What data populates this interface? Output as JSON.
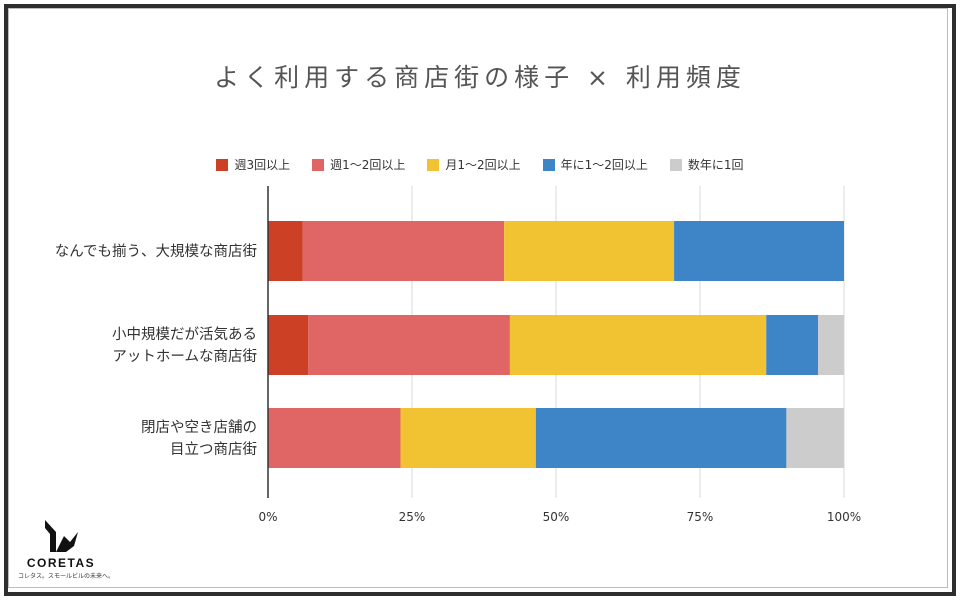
{
  "chart_data": {
    "type": "bar",
    "orientation": "horizontal",
    "stacked": true,
    "normalized": true,
    "title": "よく利用する商店街の様子 × 利用頻度",
    "categories": [
      [
        "なんでも揃う、大規模な商店街"
      ],
      [
        "小中規模だが活気ある",
        "アットホームな商店街"
      ],
      [
        "閉店や空き店舗の",
        "目立つ商店街"
      ]
    ],
    "series": [
      {
        "name": "週3回以上",
        "color": "#cc4125",
        "values": [
          6,
          7,
          0
        ]
      },
      {
        "name": "週1～2回以上",
        "color": "#e06666",
        "values": [
          35,
          35,
          23
        ]
      },
      {
        "name": "月1～2回以上",
        "color": "#f1c232",
        "values": [
          29.5,
          44.5,
          23.5
        ]
      },
      {
        "name": "年に1～2回以上",
        "color": "#3d85c6",
        "values": [
          29.5,
          9,
          43.5
        ]
      },
      {
        "name": "数年に1回",
        "color": "#cccccc",
        "values": [
          0,
          4.5,
          10
        ]
      }
    ],
    "xaxis": {
      "ticks": [
        "0%",
        "25%",
        "50%",
        "75%",
        "100%"
      ],
      "range": [
        0,
        100
      ]
    },
    "grid": true,
    "legend_position": "top"
  },
  "branding": {
    "logo_name": "CORETAS",
    "logo_tagline": "コレタス。スモールビルの未来へ。"
  }
}
